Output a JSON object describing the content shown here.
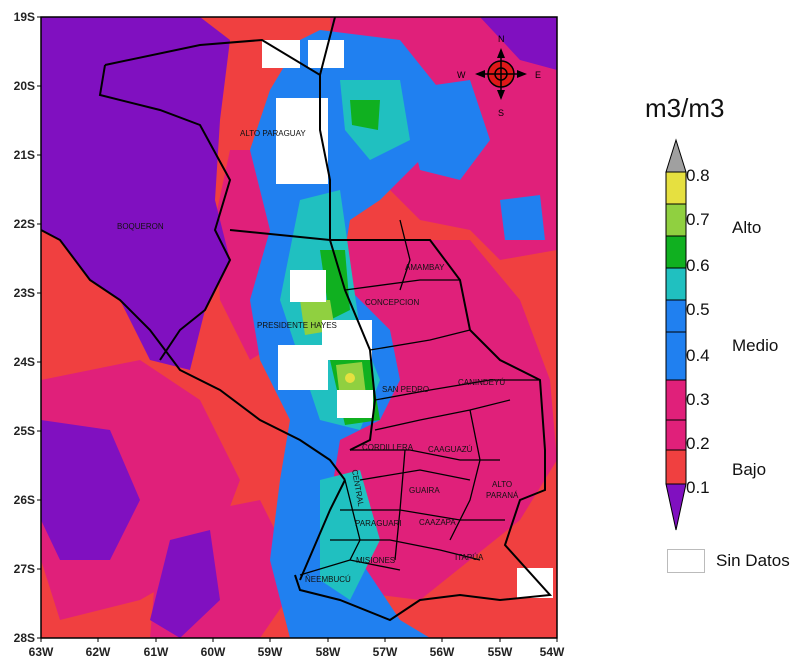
{
  "map": {
    "x_ticks": [
      "63W",
      "62W",
      "61W",
      "60W",
      "59W",
      "58W",
      "57W",
      "56W",
      "55W",
      "54W"
    ],
    "y_ticks": [
      "19S",
      "20S",
      "21S",
      "22S",
      "23S",
      "24S",
      "25S",
      "26S",
      "27S",
      "28S"
    ],
    "compass": {
      "n": "N",
      "s": "S",
      "e": "E",
      "w": "W"
    },
    "regions": {
      "alto_paraguay": "ALTO PARAGUAY",
      "boqueron": "BOQUERON",
      "presidente_hayes": "PRESIDENTE HAYES",
      "amambay": "AMAMBAY",
      "concepcion": "CONCEPCION",
      "san_pedro": "SAN PEDRO",
      "canindeyu": "CANINDEYÚ",
      "cordillera": "CORDILLERA",
      "caaguazu": "CAAGUAZÚ",
      "central": "CENTRAL",
      "guaira": "GUAIRA",
      "alto_parana_1": "ALTO",
      "alto_parana_2": "PARANÁ",
      "paraguari": "PARAGUARI",
      "caazapa": "CAAZAPA",
      "misiones": "MISIONES",
      "itapua": "ITAPÚA",
      "neembucu": "ÑEEMBUCÚ"
    }
  },
  "legend": {
    "unit": "m3/m3",
    "values": [
      "0.8",
      "0.7",
      "0.6",
      "0.5",
      "0.4",
      "0.3",
      "0.2",
      "0.1"
    ],
    "categories": {
      "high": "Alto",
      "medium": "Medio",
      "low": "Bajo"
    },
    "no_data_label": "Sin Datos",
    "colors": {
      "top_cap": "#a0a0a0",
      "band_07_08": "#e6e040",
      "band_06_07": "#90d040",
      "band_05_06": "#10b020",
      "band_04_05": "#20c0c0",
      "band_03_04": "#2080f0",
      "band_02_03": "#e0207a",
      "band_01_02": "#f04040",
      "bottom_cap": "#8010c0"
    }
  }
}
